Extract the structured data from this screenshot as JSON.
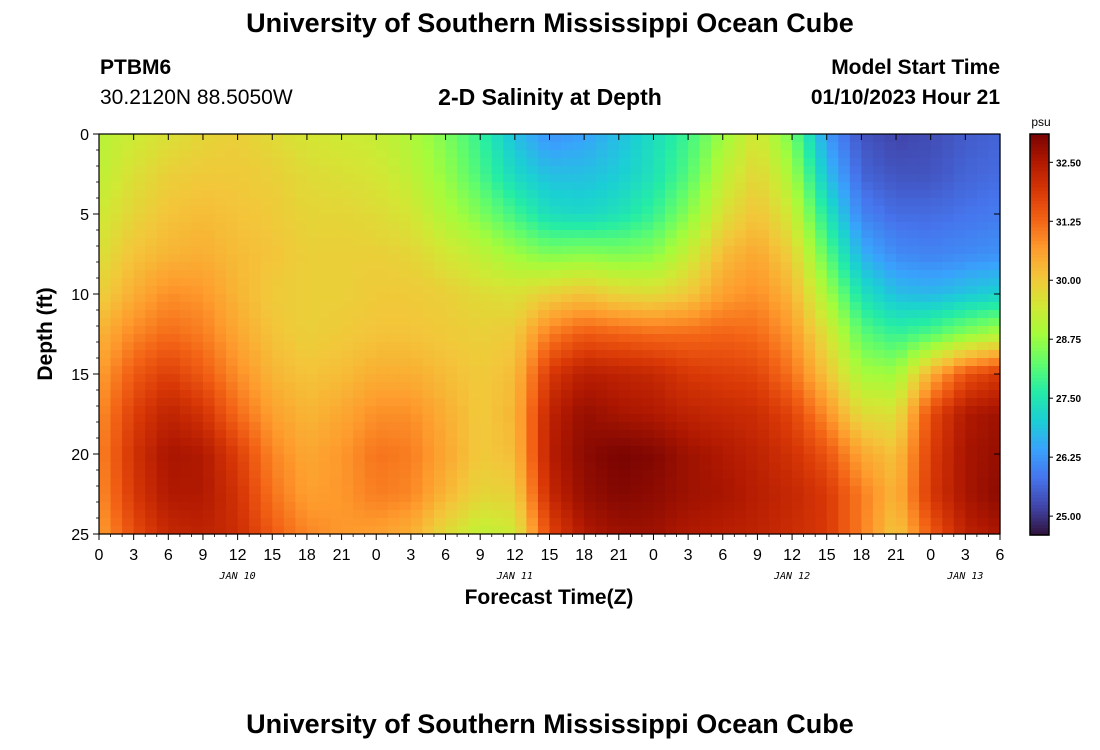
{
  "header": {
    "title": "University of Southern Mississippi Ocean Cube",
    "station_id": "PTBM6",
    "station_coords": "30.2120N  88.5050W",
    "plot_title": "2-D Salinity at Depth",
    "model_start_label": "Model Start Time",
    "model_start_value": "01/10/2023 Hour 21"
  },
  "footer": {
    "title": "University of Southern Mississippi Ocean Cube"
  },
  "chart_data": {
    "type": "heatmap",
    "title": "2-D Salinity at Depth",
    "xlabel": "Forecast Time(Z)",
    "ylabel": "Depth (ft)",
    "x_ticks": [
      "0",
      "3",
      "6",
      "9",
      "12",
      "15",
      "18",
      "21",
      "0",
      "3",
      "6",
      "9",
      "12",
      "15",
      "18",
      "21",
      "0",
      "3",
      "6",
      "9",
      "12",
      "15",
      "18",
      "21",
      "0",
      "3",
      "6"
    ],
    "x_date_labels": [
      {
        "label": "JAN 10",
        "hour": 12
      },
      {
        "label": "JAN 11",
        "hour": 36
      },
      {
        "label": "JAN 12",
        "hour": 60
      },
      {
        "label": "JAN 13",
        "hour": 75
      }
    ],
    "x_range_hours": [
      0,
      78
    ],
    "y_ticks": [
      0,
      5,
      10,
      15,
      20,
      25
    ],
    "ylim": [
      0,
      25
    ],
    "y_inverted": true,
    "colorbar": {
      "unit": "psu",
      "min": 24.6,
      "max": 33.1,
      "ticks": [
        "32.50",
        "31.25",
        "30.00",
        "28.75",
        "27.50",
        "26.25",
        "25.00"
      ],
      "colors": [
        "#30123b",
        "#4145ab",
        "#4675ed",
        "#39a2fc",
        "#1bcfd4",
        "#24eca6",
        "#61fc6c",
        "#a4fc3b",
        "#d1e834",
        "#f3c63a",
        "#fe9b2d",
        "#f36315",
        "#d93806",
        "#b11901",
        "#7a0402"
      ]
    },
    "depths": [
      0,
      2.5,
      5,
      7.5,
      10,
      12.5,
      15,
      17.5,
      20,
      22.5,
      25
    ],
    "hours": [
      0,
      3,
      6,
      9,
      12,
      15,
      18,
      21,
      24,
      27,
      30,
      33,
      36,
      39,
      42,
      45,
      48,
      51,
      54,
      57,
      60,
      63,
      66,
      69,
      72,
      75,
      78
    ],
    "salinity": [
      [
        29.1,
        29.4,
        29.6,
        29.8,
        29.9,
        29.7,
        29.5,
        29.4,
        29.3,
        29.0,
        28.5,
        27.8,
        26.8,
        26.2,
        26.4,
        26.8,
        27.3,
        27.9,
        28.8,
        29.5,
        28.4,
        26.3,
        25.4,
        25.2,
        25.3,
        25.5,
        25.6
      ],
      [
        29.2,
        29.6,
        29.9,
        30.0,
        30.0,
        29.9,
        29.7,
        29.6,
        29.5,
        29.2,
        28.7,
        28.0,
        27.2,
        26.8,
        26.8,
        27.0,
        27.4,
        28.1,
        29.2,
        29.8,
        28.9,
        26.8,
        25.6,
        25.4,
        25.4,
        25.6,
        25.7
      ],
      [
        29.4,
        29.8,
        30.1,
        30.2,
        30.1,
        30.0,
        29.8,
        29.8,
        29.7,
        29.5,
        29.0,
        28.5,
        27.9,
        27.3,
        27.2,
        27.4,
        27.8,
        28.6,
        29.6,
        30.1,
        29.4,
        27.5,
        26.0,
        25.7,
        25.7,
        25.8,
        25.9
      ],
      [
        29.6,
        30.1,
        30.3,
        30.4,
        30.2,
        30.1,
        29.9,
        29.9,
        29.9,
        29.8,
        29.5,
        29.2,
        28.8,
        28.5,
        28.6,
        28.5,
        28.6,
        29.3,
        30.2,
        30.5,
        29.9,
        28.2,
        26.6,
        26.1,
        26.0,
        26.1,
        26.2
      ],
      [
        29.9,
        30.4,
        30.8,
        30.7,
        30.3,
        30.0,
        29.9,
        29.9,
        30.0,
        30.0,
        29.9,
        29.7,
        29.6,
        29.9,
        30.1,
        29.8,
        29.7,
        30.0,
        30.6,
        30.8,
        30.3,
        28.9,
        27.4,
        26.8,
        26.7,
        26.9,
        27.1
      ],
      [
        30.3,
        30.9,
        31.2,
        31.0,
        30.5,
        30.1,
        29.9,
        30.0,
        30.1,
        30.1,
        30.0,
        29.9,
        30.0,
        31.0,
        31.4,
        31.3,
        31.2,
        31.2,
        31.3,
        31.2,
        30.7,
        29.6,
        28.2,
        27.8,
        28.1,
        28.6,
        29.0
      ],
      [
        30.6,
        31.4,
        31.8,
        31.4,
        30.8,
        30.3,
        30.1,
        30.2,
        30.4,
        30.4,
        30.2,
        30.0,
        30.2,
        31.9,
        32.4,
        32.3,
        32.2,
        31.9,
        31.8,
        31.7,
        31.1,
        30.1,
        28.9,
        28.8,
        30.4,
        31.5,
        31.9
      ],
      [
        30.8,
        31.8,
        32.3,
        32.0,
        31.2,
        30.6,
        30.3,
        30.5,
        30.8,
        30.8,
        30.4,
        30.0,
        30.3,
        32.3,
        32.8,
        32.6,
        32.5,
        32.3,
        32.2,
        32.1,
        31.7,
        30.8,
        29.7,
        29.6,
        31.6,
        32.5,
        32.7
      ],
      [
        30.9,
        32.0,
        32.6,
        32.5,
        31.8,
        30.9,
        30.5,
        30.7,
        31.1,
        31.0,
        30.5,
        30.0,
        30.2,
        32.4,
        32.9,
        33.1,
        33.0,
        32.7,
        32.5,
        32.3,
        32.0,
        31.5,
        30.5,
        30.1,
        31.8,
        32.6,
        32.8
      ],
      [
        30.8,
        31.9,
        32.5,
        32.5,
        32.0,
        31.1,
        30.6,
        30.7,
        31.0,
        30.9,
        30.3,
        29.8,
        29.9,
        32.2,
        32.8,
        33.0,
        32.9,
        32.7,
        32.6,
        32.4,
        32.2,
        31.9,
        31.0,
        30.3,
        31.9,
        32.6,
        32.9
      ],
      [
        30.6,
        31.6,
        32.2,
        32.3,
        32.1,
        31.4,
        30.9,
        30.7,
        30.6,
        30.4,
        29.7,
        29.2,
        29.4,
        31.7,
        32.5,
        32.7,
        32.7,
        32.5,
        32.4,
        32.3,
        32.1,
        31.9,
        31.0,
        30.0,
        31.4,
        32.3,
        32.6
      ]
    ]
  }
}
